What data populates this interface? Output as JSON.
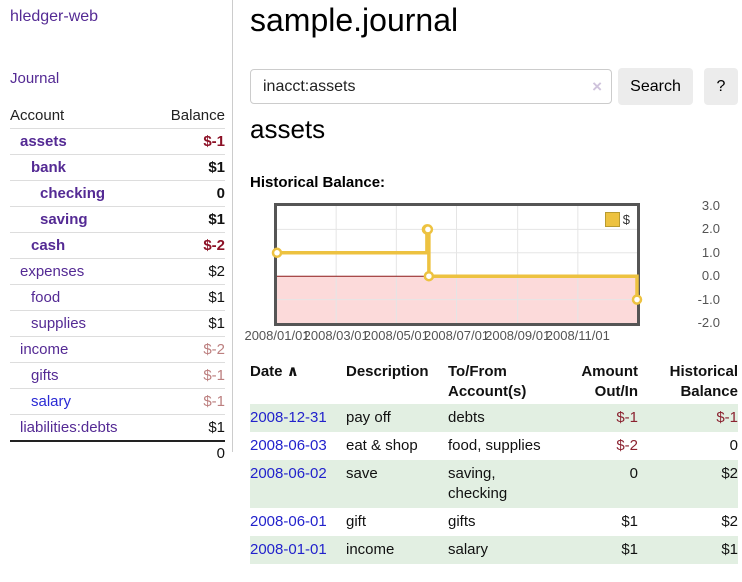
{
  "app": {
    "brand": "hledger-web",
    "nav_journal": "Journal"
  },
  "colors": {
    "link_purple": "#542a94",
    "link_blue": "#2222cc",
    "negative_strong": "#8c1126",
    "negative_muted": "#bc7f7f",
    "row_stripe_green": "#e2efe2",
    "chart_series_yellow": "#edc240"
  },
  "sidebar": {
    "header": {
      "account": "Account",
      "balance": "Balance"
    },
    "accounts": [
      {
        "name": "assets",
        "indent": 1,
        "bold": true,
        "balance": "$-1",
        "balance_style": "neg-strong"
      },
      {
        "name": "bank",
        "indent": 2,
        "bold": true,
        "balance": "$1",
        "balance_style": "pos-strong"
      },
      {
        "name": "checking",
        "indent": 3,
        "bold": true,
        "balance": "0",
        "balance_style": "pos-strong"
      },
      {
        "name": "saving",
        "indent": 3,
        "bold": true,
        "balance": "$1",
        "balance_style": "pos-strong"
      },
      {
        "name": "cash",
        "indent": 2,
        "bold": true,
        "balance": "$-2",
        "balance_style": "neg-strong"
      },
      {
        "name": "expenses",
        "indent": 1,
        "bold": false,
        "balance": "$2",
        "balance_style": "pos"
      },
      {
        "name": "food",
        "indent": 2,
        "bold": false,
        "balance": "$1",
        "balance_style": "pos"
      },
      {
        "name": "supplies",
        "indent": 2,
        "bold": false,
        "balance": "$1",
        "balance_style": "pos"
      },
      {
        "name": "income",
        "indent": 1,
        "bold": false,
        "balance": "$-2",
        "balance_style": "neg"
      },
      {
        "name": "gifts",
        "indent": 2,
        "bold": false,
        "balance": "$-1",
        "balance_style": "neg"
      },
      {
        "name": "salary",
        "indent": 2,
        "bold": false,
        "balance": "$-1",
        "balance_style": "neg",
        "link_color": "blue"
      },
      {
        "name": "liabilities:debts",
        "indent": 1,
        "bold": false,
        "balance": "$1",
        "balance_style": "pos"
      }
    ],
    "total": "0"
  },
  "header": {
    "title": "sample.journal"
  },
  "search": {
    "value": "inacct:assets",
    "clear_icon": "×",
    "button": "Search",
    "help_button": "?"
  },
  "account_page": {
    "heading": "assets"
  },
  "chart_data": {
    "type": "line",
    "step": true,
    "title": "Historical Balance:",
    "xlabel": "",
    "ylabel": "",
    "grid": true,
    "legend_position": "top-right",
    "xlim": [
      "2008-01-01",
      "2008-12-31"
    ],
    "ylim": [
      -2,
      3
    ],
    "yticks": [
      3.0,
      2.0,
      1.0,
      0.0,
      -1.0,
      -2.0
    ],
    "xticks": [
      {
        "date": "2008-01-01",
        "label": "2008/01/01"
      },
      {
        "date": "2008-03-01",
        "label": "2008/03/01"
      },
      {
        "date": "2008-05-01",
        "label": "2008/05/01"
      },
      {
        "date": "2008-07-01",
        "label": "2008/07/01"
      },
      {
        "date": "2008-09-01",
        "label": "2008/09/01"
      },
      {
        "date": "2008-11-01",
        "label": "2008/11/01"
      }
    ],
    "series": [
      {
        "name": "$",
        "color": "#edc240",
        "swatch_border": "#b89b30",
        "points": [
          [
            "2008-01-01",
            1
          ],
          [
            "2008-06-01",
            2
          ],
          [
            "2008-06-02",
            2
          ],
          [
            "2008-06-03",
            0
          ],
          [
            "2008-12-31",
            -1
          ]
        ]
      }
    ],
    "grid_color": "#e5e5e5",
    "zero_line_color": "#8b1a1a",
    "negative_region_fill": "#fcdada"
  },
  "register": {
    "sort_indicator": "∧",
    "columns": {
      "date": "Date",
      "description": "Description",
      "accounts_l1": "To/From",
      "accounts_l2": "Account(s)",
      "amount_l1": "Amount",
      "amount_l2": "Out/In",
      "balance_l1": "Historical",
      "balance_l2": "Balance"
    },
    "rows": [
      {
        "date": "2008-12-31",
        "description": "pay off",
        "accounts": "debts",
        "amount": "$-1",
        "amount_negative": true,
        "balance": "$-1",
        "balance_negative": true
      },
      {
        "date": "2008-06-03",
        "description": "eat & shop",
        "accounts": "food, supplies",
        "amount": "$-2",
        "amount_negative": true,
        "balance": "0",
        "balance_negative": false
      },
      {
        "date": "2008-06-02",
        "description": "save",
        "accounts": "saving, checking",
        "amount": "0",
        "amount_negative": false,
        "balance": "$2",
        "balance_negative": false
      },
      {
        "date": "2008-06-01",
        "description": "gift",
        "accounts": "gifts",
        "amount": "$1",
        "amount_negative": false,
        "balance": "$2",
        "balance_negative": false
      },
      {
        "date": "2008-01-01",
        "description": "income",
        "accounts": "salary",
        "amount": "$1",
        "amount_negative": false,
        "balance": "$1",
        "balance_negative": false
      }
    ]
  }
}
